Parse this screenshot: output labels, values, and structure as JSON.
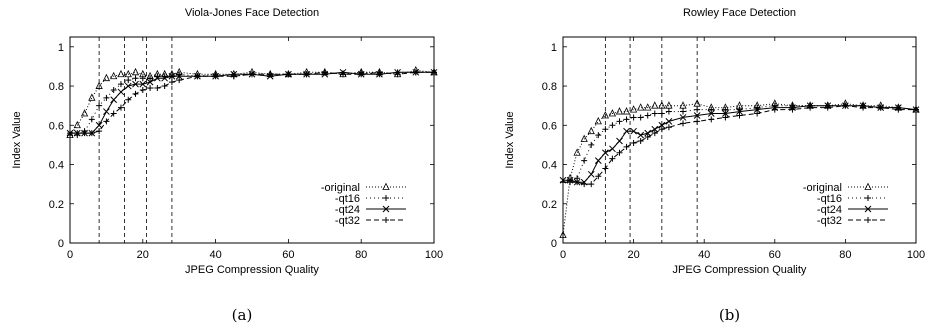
{
  "chart_data": [
    {
      "type": "line",
      "title": "Viola-Jones Face Detection",
      "xlabel": "JPEG Compression Quality",
      "ylabel": "Index Value",
      "caption": "(a)",
      "xlim": [
        0,
        100
      ],
      "ylim": [
        0,
        1.05
      ],
      "xticks": [
        "0",
        "20",
        "40",
        "60",
        "80",
        "100"
      ],
      "yticks": [
        "0",
        "0.2",
        "0.4",
        "0.6",
        "0.8",
        "1"
      ],
      "vlines": [
        8,
        15,
        21,
        28
      ],
      "legend_position": "bottom-right",
      "series": [
        {
          "name": "-original",
          "marker": "triangle",
          "dash": "1,2",
          "x": [
            0,
            2,
            4,
            6,
            8,
            10,
            12,
            14,
            16,
            18,
            20,
            22,
            24,
            26,
            28,
            30,
            35,
            40,
            45,
            50,
            55,
            60,
            65,
            70,
            75,
            80,
            85,
            90,
            95,
            100
          ],
          "y": [
            0.55,
            0.6,
            0.66,
            0.74,
            0.8,
            0.84,
            0.85,
            0.86,
            0.86,
            0.87,
            0.86,
            0.85,
            0.86,
            0.86,
            0.86,
            0.87,
            0.86,
            0.86,
            0.86,
            0.87,
            0.86,
            0.86,
            0.87,
            0.87,
            0.86,
            0.87,
            0.87,
            0.86,
            0.88,
            0.87
          ]
        },
        {
          "name": "-qt16",
          "marker": "plus",
          "dash": "1,3",
          "x": [
            0,
            2,
            4,
            6,
            8,
            10,
            12,
            14,
            16,
            18,
            20,
            22,
            24,
            26,
            28,
            30,
            35,
            40,
            45,
            50,
            55,
            60,
            65,
            70,
            75,
            80,
            85,
            90,
            95,
            100
          ],
          "y": [
            0.55,
            0.55,
            0.57,
            0.63,
            0.7,
            0.74,
            0.78,
            0.81,
            0.83,
            0.84,
            0.84,
            0.84,
            0.85,
            0.85,
            0.85,
            0.86,
            0.85,
            0.86,
            0.85,
            0.86,
            0.86,
            0.86,
            0.86,
            0.87,
            0.86,
            0.87,
            0.86,
            0.87,
            0.87,
            0.87
          ]
        },
        {
          "name": "-qt24",
          "marker": "cross",
          "dash": "",
          "x": [
            0,
            2,
            4,
            6,
            8,
            10,
            12,
            14,
            16,
            18,
            20,
            22,
            24,
            26,
            28,
            30,
            35,
            40,
            45,
            50,
            55,
            60,
            65,
            70,
            75,
            80,
            85,
            90,
            95,
            100
          ],
          "y": [
            0.56,
            0.56,
            0.56,
            0.56,
            0.6,
            0.67,
            0.73,
            0.77,
            0.8,
            0.81,
            0.81,
            0.82,
            0.84,
            0.84,
            0.85,
            0.85,
            0.85,
            0.85,
            0.86,
            0.86,
            0.85,
            0.86,
            0.86,
            0.86,
            0.87,
            0.86,
            0.86,
            0.87,
            0.87,
            0.87
          ]
        },
        {
          "name": "-qt32",
          "marker": "plus",
          "dash": "5,3",
          "x": [
            0,
            2,
            4,
            6,
            8,
            10,
            12,
            14,
            16,
            18,
            20,
            22,
            24,
            26,
            28,
            30,
            35,
            40,
            45,
            50,
            55,
            60,
            65,
            70,
            75,
            80,
            85,
            90,
            95,
            100
          ],
          "y": [
            0.56,
            0.56,
            0.56,
            0.56,
            0.57,
            0.62,
            0.66,
            0.69,
            0.73,
            0.76,
            0.78,
            0.79,
            0.79,
            0.8,
            0.82,
            0.83,
            0.85,
            0.85,
            0.85,
            0.86,
            0.86,
            0.86,
            0.86,
            0.87,
            0.86,
            0.86,
            0.87,
            0.86,
            0.87,
            0.87
          ]
        }
      ]
    },
    {
      "type": "line",
      "title": "Rowley Face Detection",
      "xlabel": "JPEG Compression Quality",
      "ylabel": "Index Value",
      "caption": "(b)",
      "xlim": [
        0,
        100
      ],
      "ylim": [
        0,
        1.05
      ],
      "xticks": [
        "0",
        "20",
        "40",
        "60",
        "80",
        "100"
      ],
      "yticks": [
        "0",
        "0.2",
        "0.4",
        "0.6",
        "0.8",
        "1"
      ],
      "vlines": [
        12,
        19,
        28,
        38
      ],
      "legend_position": "bottom-right",
      "series": [
        {
          "name": "-original",
          "marker": "triangle",
          "dash": "1,2",
          "x": [
            0,
            2,
            4,
            6,
            8,
            10,
            12,
            14,
            16,
            18,
            20,
            22,
            24,
            26,
            28,
            30,
            34,
            38,
            42,
            46,
            50,
            55,
            60,
            65,
            70,
            75,
            80,
            85,
            90,
            95,
            100
          ],
          "y": [
            0.04,
            0.33,
            0.46,
            0.53,
            0.57,
            0.62,
            0.65,
            0.66,
            0.67,
            0.67,
            0.68,
            0.69,
            0.69,
            0.7,
            0.7,
            0.7,
            0.7,
            0.71,
            0.69,
            0.69,
            0.7,
            0.7,
            0.71,
            0.7,
            0.7,
            0.7,
            0.71,
            0.7,
            0.7,
            0.69,
            0.68
          ]
        },
        {
          "name": "-qt16",
          "marker": "plus",
          "dash": "1,3",
          "x": [
            0,
            2,
            4,
            6,
            8,
            10,
            12,
            14,
            16,
            18,
            20,
            22,
            24,
            26,
            28,
            30,
            34,
            38,
            42,
            46,
            50,
            55,
            60,
            65,
            70,
            75,
            80,
            85,
            90,
            95,
            100
          ],
          "y": [
            0.31,
            0.32,
            0.33,
            0.42,
            0.5,
            0.55,
            0.58,
            0.6,
            0.62,
            0.63,
            0.64,
            0.64,
            0.65,
            0.66,
            0.66,
            0.67,
            0.67,
            0.68,
            0.68,
            0.68,
            0.68,
            0.69,
            0.7,
            0.7,
            0.7,
            0.7,
            0.7,
            0.7,
            0.69,
            0.69,
            0.68
          ]
        },
        {
          "name": "-qt24",
          "marker": "cross",
          "dash": "",
          "x": [
            0,
            2,
            4,
            6,
            8,
            10,
            12,
            14,
            16,
            18,
            20,
            22,
            24,
            26,
            28,
            30,
            34,
            38,
            42,
            46,
            50,
            55,
            60,
            65,
            70,
            75,
            80,
            85,
            90,
            95,
            100
          ],
          "y": [
            0.32,
            0.32,
            0.31,
            0.31,
            0.35,
            0.42,
            0.46,
            0.48,
            0.52,
            0.57,
            0.57,
            0.55,
            0.56,
            0.58,
            0.6,
            0.62,
            0.64,
            0.65,
            0.66,
            0.66,
            0.67,
            0.68,
            0.69,
            0.69,
            0.7,
            0.7,
            0.7,
            0.7,
            0.69,
            0.69,
            0.68
          ]
        },
        {
          "name": "-qt32",
          "marker": "plus",
          "dash": "5,3",
          "x": [
            0,
            2,
            4,
            6,
            8,
            10,
            12,
            14,
            16,
            18,
            20,
            22,
            24,
            26,
            28,
            30,
            34,
            38,
            42,
            46,
            50,
            55,
            60,
            65,
            70,
            75,
            80,
            85,
            90,
            95,
            100
          ],
          "y": [
            0.31,
            0.31,
            0.31,
            0.3,
            0.3,
            0.34,
            0.38,
            0.43,
            0.46,
            0.49,
            0.51,
            0.52,
            0.54,
            0.56,
            0.58,
            0.59,
            0.61,
            0.62,
            0.63,
            0.64,
            0.65,
            0.66,
            0.68,
            0.68,
            0.69,
            0.69,
            0.7,
            0.69,
            0.69,
            0.68,
            0.68
          ]
        }
      ]
    }
  ]
}
